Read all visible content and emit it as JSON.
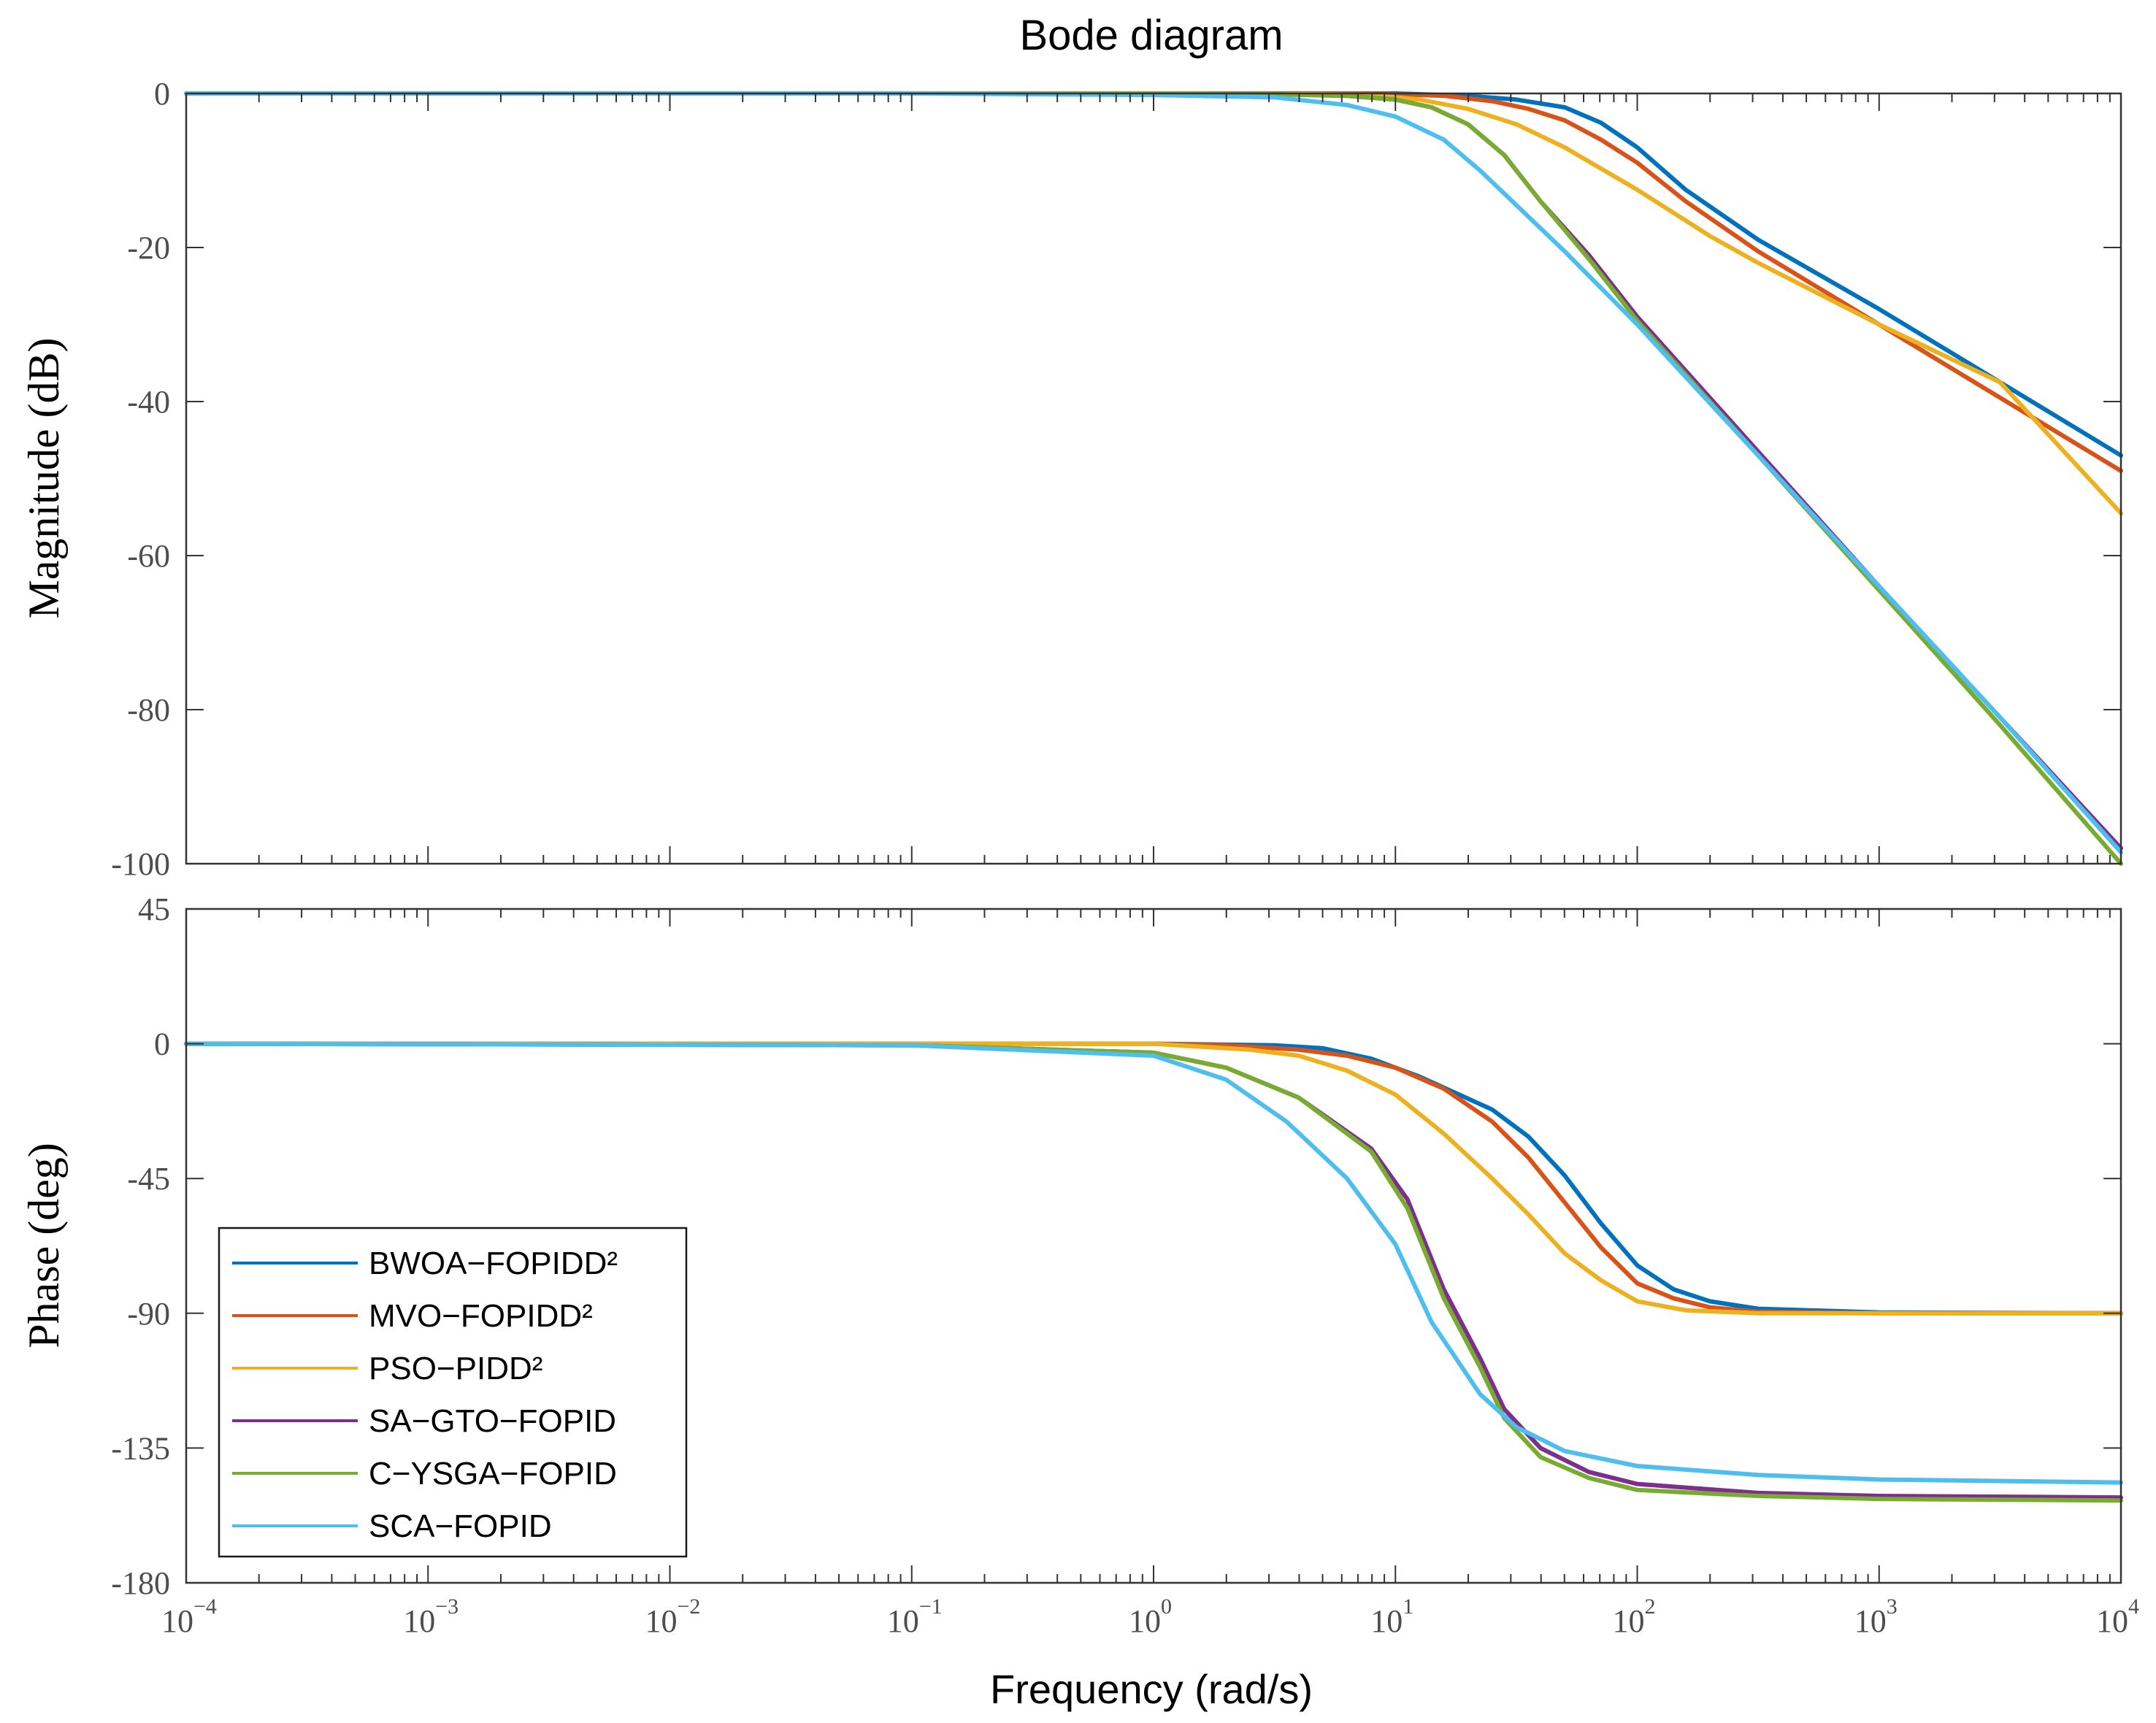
{
  "chart_data": {
    "type": "line",
    "title": "Bode diagram",
    "xlabel": "Frequency  (rad/s)",
    "xscale": "log",
    "xlim_exponents": [
      -4,
      4
    ],
    "x_tick_base": "10",
    "x_tick_exponents": [
      "−4",
      "−3",
      "−2",
      "−1",
      "0",
      "1",
      "2",
      "3",
      "4"
    ],
    "legend_position": "lower-left of phase plot",
    "magnitude": {
      "ylabel": "Magnitude (dB)",
      "ylim": [
        -100,
        0
      ],
      "yticks": [
        0,
        -20,
        -40,
        -60,
        -80,
        -100
      ],
      "ytick_labels": [
        "0",
        "-20",
        "-40",
        "-60",
        "-80",
        "-100"
      ]
    },
    "phase": {
      "ylabel": "Phase (deg)",
      "ylim": [
        -180,
        45
      ],
      "yticks": [
        45,
        0,
        -45,
        -90,
        -135,
        -180
      ],
      "ytick_labels": [
        "45",
        "0",
        "-45",
        "-90",
        "-135",
        "-180"
      ]
    },
    "series": [
      {
        "name": "BWOA−FOPIDD²",
        "color": "#0072BD",
        "magnitude": [
          [
            -4,
            0
          ],
          [
            0,
            0
          ],
          [
            1,
            0
          ],
          [
            1.3,
            -0.3
          ],
          [
            1.5,
            -0.8
          ],
          [
            1.7,
            -1.8
          ],
          [
            1.85,
            -3.8
          ],
          [
            2,
            -7
          ],
          [
            2.2,
            -12.5
          ],
          [
            2.5,
            -19
          ],
          [
            3,
            -28
          ],
          [
            3.5,
            -37.5
          ],
          [
            4,
            -47
          ]
        ],
        "phase": [
          [
            -4,
            0
          ],
          [
            0,
            0
          ],
          [
            0.5,
            -0.5
          ],
          [
            0.7,
            -1.5
          ],
          [
            0.9,
            -5
          ],
          [
            1.1,
            -11
          ],
          [
            1.4,
            -22
          ],
          [
            1.55,
            -31
          ],
          [
            1.7,
            -44
          ],
          [
            1.85,
            -60
          ],
          [
            2,
            -74
          ],
          [
            2.15,
            -82
          ],
          [
            2.3,
            -86
          ],
          [
            2.5,
            -88.5
          ],
          [
            3,
            -89.7
          ],
          [
            4,
            -90
          ]
        ]
      },
      {
        "name": "MVO−FOPIDD²",
        "color": "#D95319",
        "magnitude": [
          [
            -4,
            0
          ],
          [
            0,
            0
          ],
          [
            0.9,
            0
          ],
          [
            1.2,
            -0.3
          ],
          [
            1.4,
            -1
          ],
          [
            1.55,
            -2
          ],
          [
            1.7,
            -3.5
          ],
          [
            1.85,
            -6
          ],
          [
            2,
            -9
          ],
          [
            2.2,
            -14
          ],
          [
            2.5,
            -20.5
          ],
          [
            3,
            -30
          ],
          [
            3.5,
            -39.5
          ],
          [
            4,
            -49
          ]
        ],
        "phase": [
          [
            -4,
            0
          ],
          [
            0,
            0
          ],
          [
            0.3,
            -0.5
          ],
          [
            0.6,
            -2
          ],
          [
            0.8,
            -4
          ],
          [
            1,
            -8
          ],
          [
            1.2,
            -15
          ],
          [
            1.4,
            -26
          ],
          [
            1.55,
            -38
          ],
          [
            1.7,
            -53
          ],
          [
            1.85,
            -68
          ],
          [
            2,
            -80
          ],
          [
            2.15,
            -85
          ],
          [
            2.3,
            -88
          ],
          [
            2.5,
            -89.5
          ],
          [
            3,
            -90
          ],
          [
            4,
            -90
          ]
        ]
      },
      {
        "name": "PSO−PIDD²",
        "color": "#EDB120",
        "magnitude": [
          [
            -4,
            0
          ],
          [
            0,
            0
          ],
          [
            0.7,
            -0.1
          ],
          [
            0.9,
            -0.2
          ],
          [
            1.1,
            -0.8
          ],
          [
            1.3,
            -2
          ],
          [
            1.5,
            -4
          ],
          [
            1.7,
            -7
          ],
          [
            2,
            -12.5
          ],
          [
            2.3,
            -18.5
          ],
          [
            2.5,
            -22
          ],
          [
            3,
            -30
          ],
          [
            3.5,
            -37.5
          ],
          [
            4,
            -54.5
          ]
        ],
        "phase": [
          [
            -4,
            0
          ],
          [
            0,
            0
          ],
          [
            0.2,
            -1
          ],
          [
            0.4,
            -2
          ],
          [
            0.6,
            -4
          ],
          [
            0.8,
            -9
          ],
          [
            1,
            -17
          ],
          [
            1.2,
            -30
          ],
          [
            1.4,
            -45
          ],
          [
            1.55,
            -57
          ],
          [
            1.7,
            -70
          ],
          [
            1.85,
            -79
          ],
          [
            2,
            -86
          ],
          [
            2.2,
            -89
          ],
          [
            2.5,
            -90
          ],
          [
            4,
            -90
          ]
        ]
      },
      {
        "name": "SA−GTO−FOPID",
        "color": "#7E2F8E",
        "magnitude": [
          [
            -4,
            0
          ],
          [
            0,
            0
          ],
          [
            0.5,
            -0.1
          ],
          [
            0.8,
            -0.3
          ],
          [
            1,
            -0.8
          ],
          [
            1.15,
            -1.8
          ],
          [
            1.3,
            -4
          ],
          [
            1.45,
            -8
          ],
          [
            1.6,
            -14
          ],
          [
            1.8,
            -21
          ],
          [
            2,
            -29
          ],
          [
            2.5,
            -46.5
          ],
          [
            3,
            -64
          ],
          [
            3.5,
            -81
          ],
          [
            4,
            -98
          ]
        ],
        "phase": [
          [
            -4,
            0
          ],
          [
            -1,
            -0.5
          ],
          [
            0,
            -3
          ],
          [
            0.3,
            -8
          ],
          [
            0.6,
            -18
          ],
          [
            0.9,
            -35
          ],
          [
            1.05,
            -52
          ],
          [
            1.2,
            -82
          ],
          [
            1.35,
            -105
          ],
          [
            1.45,
            -122
          ],
          [
            1.6,
            -135
          ],
          [
            1.8,
            -143
          ],
          [
            2,
            -147
          ],
          [
            2.5,
            -150
          ],
          [
            3,
            -151
          ],
          [
            4,
            -151.5
          ]
        ]
      },
      {
        "name": "C−YSGA−FOPID",
        "color": "#77AC30",
        "magnitude": [
          [
            -4,
            0
          ],
          [
            0,
            0
          ],
          [
            0.5,
            -0.1
          ],
          [
            0.8,
            -0.3
          ],
          [
            1,
            -0.8
          ],
          [
            1.15,
            -1.8
          ],
          [
            1.3,
            -4
          ],
          [
            1.45,
            -8
          ],
          [
            1.6,
            -14
          ],
          [
            1.8,
            -21.5
          ],
          [
            2,
            -29.5
          ],
          [
            2.5,
            -47
          ],
          [
            3,
            -64.5
          ],
          [
            3.5,
            -82
          ],
          [
            4,
            -100
          ]
        ],
        "phase": [
          [
            -4,
            0
          ],
          [
            -1,
            -0.5
          ],
          [
            0,
            -3
          ],
          [
            0.3,
            -8
          ],
          [
            0.6,
            -18
          ],
          [
            0.9,
            -36
          ],
          [
            1.05,
            -55
          ],
          [
            1.2,
            -85
          ],
          [
            1.35,
            -108
          ],
          [
            1.45,
            -125
          ],
          [
            1.6,
            -138
          ],
          [
            1.8,
            -145
          ],
          [
            2,
            -149
          ],
          [
            2.5,
            -151
          ],
          [
            3,
            -152
          ],
          [
            4,
            -152.5
          ]
        ]
      },
      {
        "name": "SCA−FOPID",
        "color": "#4DBEEE",
        "magnitude": [
          [
            -4,
            0
          ],
          [
            -1,
            0
          ],
          [
            0,
            -0.2
          ],
          [
            0.5,
            -0.5
          ],
          [
            0.8,
            -1.5
          ],
          [
            1,
            -3
          ],
          [
            1.2,
            -6
          ],
          [
            1.35,
            -10
          ],
          [
            1.5,
            -14.5
          ],
          [
            1.7,
            -20.5
          ],
          [
            2,
            -30
          ],
          [
            2.5,
            -47
          ],
          [
            3,
            -64
          ],
          [
            3.5,
            -81
          ],
          [
            4,
            -98.5
          ]
        ],
        "phase": [
          [
            -4,
            0
          ],
          [
            -1,
            -0.5
          ],
          [
            0,
            -4
          ],
          [
            0.3,
            -12
          ],
          [
            0.55,
            -26
          ],
          [
            0.8,
            -45
          ],
          [
            1,
            -67
          ],
          [
            1.15,
            -93
          ],
          [
            1.35,
            -117
          ],
          [
            1.5,
            -128
          ],
          [
            1.7,
            -136
          ],
          [
            2,
            -141
          ],
          [
            2.5,
            -144
          ],
          [
            3,
            -145.5
          ],
          [
            4,
            -146.5
          ]
        ]
      }
    ]
  }
}
